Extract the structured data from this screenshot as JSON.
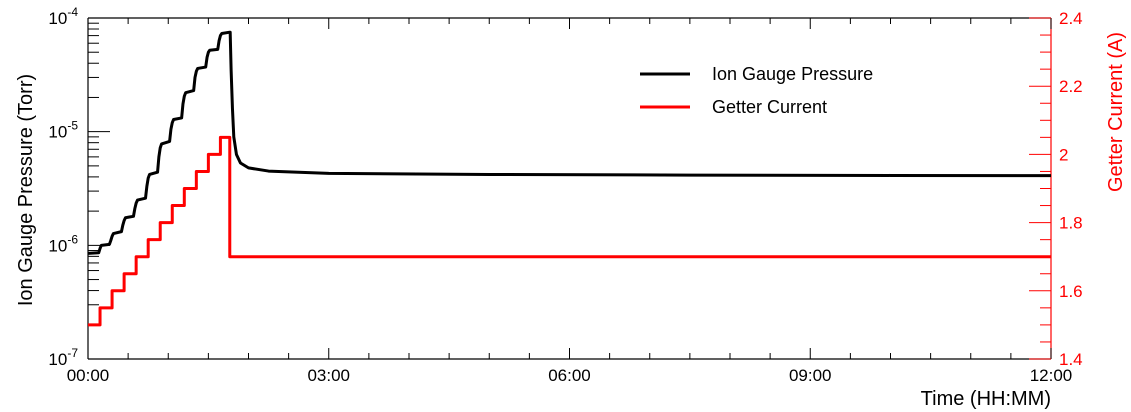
{
  "chart_data": {
    "type": "line",
    "title": "",
    "xlabel": "Time (HH:MM)",
    "ylabel": "Ion Gauge Pressure (Torr)",
    "y2label": "Getter Current (A)",
    "xlim": [
      0,
      720
    ],
    "ylim": [
      1e-07,
      0.0001
    ],
    "y2lim": [
      1.4,
      2.4
    ],
    "yscale": "log",
    "grid": false,
    "legend_position": "top-right",
    "colors": {
      "pressure": "#000000",
      "current": "#ff0000"
    },
    "x_ticks": [
      "00:00",
      "03:00",
      "06:00",
      "09:00",
      "12:00"
    ],
    "y_ticks": [
      {
        "base": "10",
        "exp": "-7"
      },
      {
        "base": "10",
        "exp": "-6"
      },
      {
        "base": "10",
        "exp": "-5"
      },
      {
        "base": "10",
        "exp": "-4"
      }
    ],
    "y2_ticks": [
      "1.4",
      "1.6",
      "1.8",
      "2",
      "2.2",
      "2.4"
    ],
    "series": [
      {
        "name": "Ion Gauge Pressure",
        "axis": "left",
        "x": [
          0,
          8,
          9,
          10,
          16,
          17,
          18,
          19,
          25,
          26,
          27,
          28,
          34,
          35,
          36,
          37,
          43,
          44,
          45,
          46,
          52,
          53,
          54,
          55,
          61,
          62,
          63,
          64,
          70,
          71,
          72,
          73,
          79,
          80,
          81,
          82,
          88,
          89,
          90,
          91,
          97,
          98,
          99,
          100,
          106,
          106.3,
          107,
          108,
          109,
          111,
          114,
          120,
          135,
          180,
          300,
          450,
          600,
          720
        ],
        "values": [
          8.5e-07,
          8.6e-07,
          9.4e-07,
          1e-06,
          1.02e-06,
          1.1e-06,
          1.2e-06,
          1.27e-06,
          1.32e-06,
          1.5e-06,
          1.65e-06,
          1.75e-06,
          1.8e-06,
          2.1e-06,
          2.35e-06,
          2.5e-06,
          2.6e-06,
          3.3e-06,
          3.9e-06,
          4.2e-06,
          4.4e-06,
          6e-06,
          7.2e-06,
          7.8e-06,
          8.2e-06,
          1.05e-05,
          1.2e-05,
          1.28e-05,
          1.32e-05,
          1.75e-05,
          2.05e-05,
          2.2e-05,
          2.3e-05,
          3e-05,
          3.4e-05,
          3.6e-05,
          3.7e-05,
          4.5e-05,
          5e-05,
          5.2e-05,
          5.3e-05,
          6.3e-05,
          7e-05,
          7.3e-05,
          7.5e-05,
          7.5e-05,
          3.5e-05,
          1.6e-05,
          9e-06,
          6.3e-06,
          5.3e-06,
          4.8e-06,
          4.5e-06,
          4.3e-06,
          4.2e-06,
          4.15e-06,
          4.12e-06,
          4.1e-06
        ]
      },
      {
        "name": "Getter Current",
        "axis": "right",
        "x": [
          0,
          9,
          18,
          27,
          36,
          45,
          54,
          63,
          72,
          81,
          90,
          99,
          106,
          720
        ],
        "values": [
          1.5,
          1.55,
          1.6,
          1.65,
          1.7,
          1.75,
          1.8,
          1.85,
          1.9,
          1.95,
          2.0,
          2.05,
          1.7,
          1.7
        ],
        "step": true
      }
    ]
  }
}
